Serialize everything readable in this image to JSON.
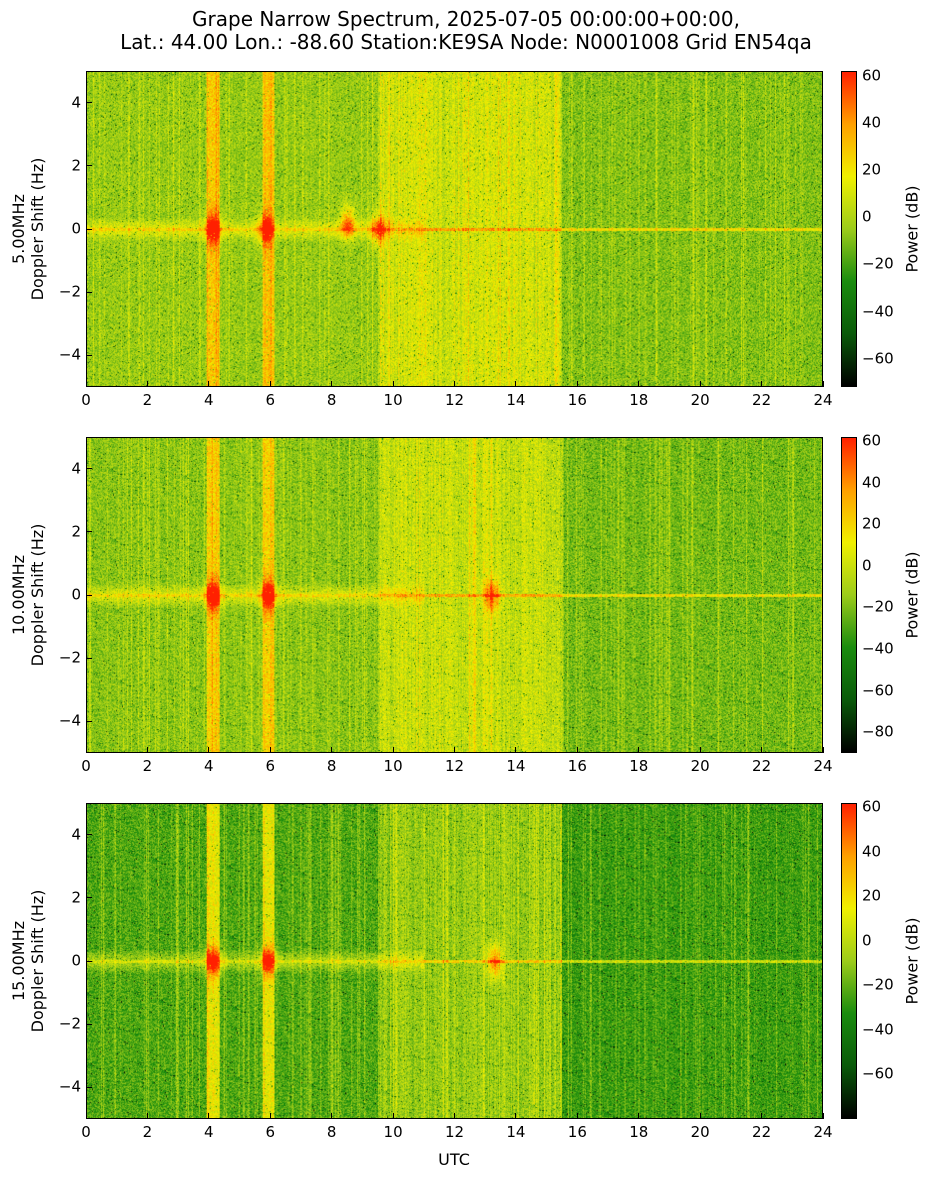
{
  "title_line1": "Grape Narrow Spectrum, 2025-07-05 00:00:00+00:00,",
  "title_line2": "Lat.: 44.00 Lon.: -88.60 Station:KE9SA Node: N0001008 Grid EN54qa",
  "xlabel": "UTC",
  "colorbar_label": "Power (dB)",
  "colormap": [
    "#000000",
    "#0a5a0a",
    "#1a8c0e",
    "#9ccc1a",
    "#f0f000",
    "#ffa000",
    "#ff2000"
  ],
  "chart_data": [
    {
      "type": "heatmap",
      "ylabel_line1": "5.00MHz",
      "ylabel_line2": "Doppler Shift (Hz)",
      "xlim": [
        0,
        24
      ],
      "ylim": [
        -5,
        5
      ],
      "xticks": [
        0,
        2,
        4,
        6,
        8,
        10,
        12,
        14,
        16,
        18,
        20,
        22,
        24
      ],
      "yticks": [
        4,
        2,
        0,
        -2,
        -4
      ],
      "colorbar_range": [
        -72,
        62
      ],
      "colorbar_ticks": [
        60,
        40,
        20,
        0,
        -20,
        -40,
        -60
      ],
      "carrier_hz": 0,
      "bright_bands_utc": [
        4.0,
        5.8
      ],
      "power_peaks": [
        {
          "utc": 4.1,
          "hz": 0
        },
        {
          "utc": 5.8,
          "hz": 0
        },
        {
          "utc": 8.5,
          "hz": 0.2
        },
        {
          "utc": 9.5,
          "hz": 0
        }
      ]
    },
    {
      "type": "heatmap",
      "ylabel_line1": "10.00MHz",
      "ylabel_line2": "Doppler Shift (Hz)",
      "xlim": [
        0,
        24
      ],
      "ylim": [
        -5,
        5
      ],
      "xticks": [
        0,
        2,
        4,
        6,
        8,
        10,
        12,
        14,
        16,
        18,
        20,
        22,
        24
      ],
      "yticks": [
        4,
        2,
        0,
        -2,
        -4
      ],
      "colorbar_range": [
        -90,
        62
      ],
      "colorbar_ticks": [
        60,
        40,
        20,
        0,
        -20,
        -40,
        -60,
        -80
      ],
      "carrier_hz": 0,
      "bright_bands_utc": [
        4.0,
        5.8
      ],
      "power_peaks": [
        {
          "utc": 4.1,
          "hz": 0
        },
        {
          "utc": 5.9,
          "hz": 0
        },
        {
          "utc": 13.2,
          "hz": 0
        }
      ]
    },
    {
      "type": "heatmap",
      "ylabel_line1": "15.00MHz",
      "ylabel_line2": "Doppler Shift (Hz)",
      "xlim": [
        0,
        24
      ],
      "ylim": [
        -5,
        5
      ],
      "xticks": [
        0,
        2,
        4,
        6,
        8,
        10,
        12,
        14,
        16,
        18,
        20,
        22,
        24
      ],
      "yticks": [
        4,
        2,
        0,
        -2,
        -4
      ],
      "colorbar_range": [
        -80,
        62
      ],
      "colorbar_ticks": [
        60,
        40,
        20,
        0,
        -20,
        -40,
        -60
      ],
      "carrier_hz": 0,
      "bright_bands_utc": [
        4.0,
        5.8
      ],
      "power_peaks": [
        {
          "utc": 4.1,
          "hz": 0
        },
        {
          "utc": 5.9,
          "hz": 0
        },
        {
          "utc": 13.3,
          "hz": 0
        }
      ]
    }
  ]
}
